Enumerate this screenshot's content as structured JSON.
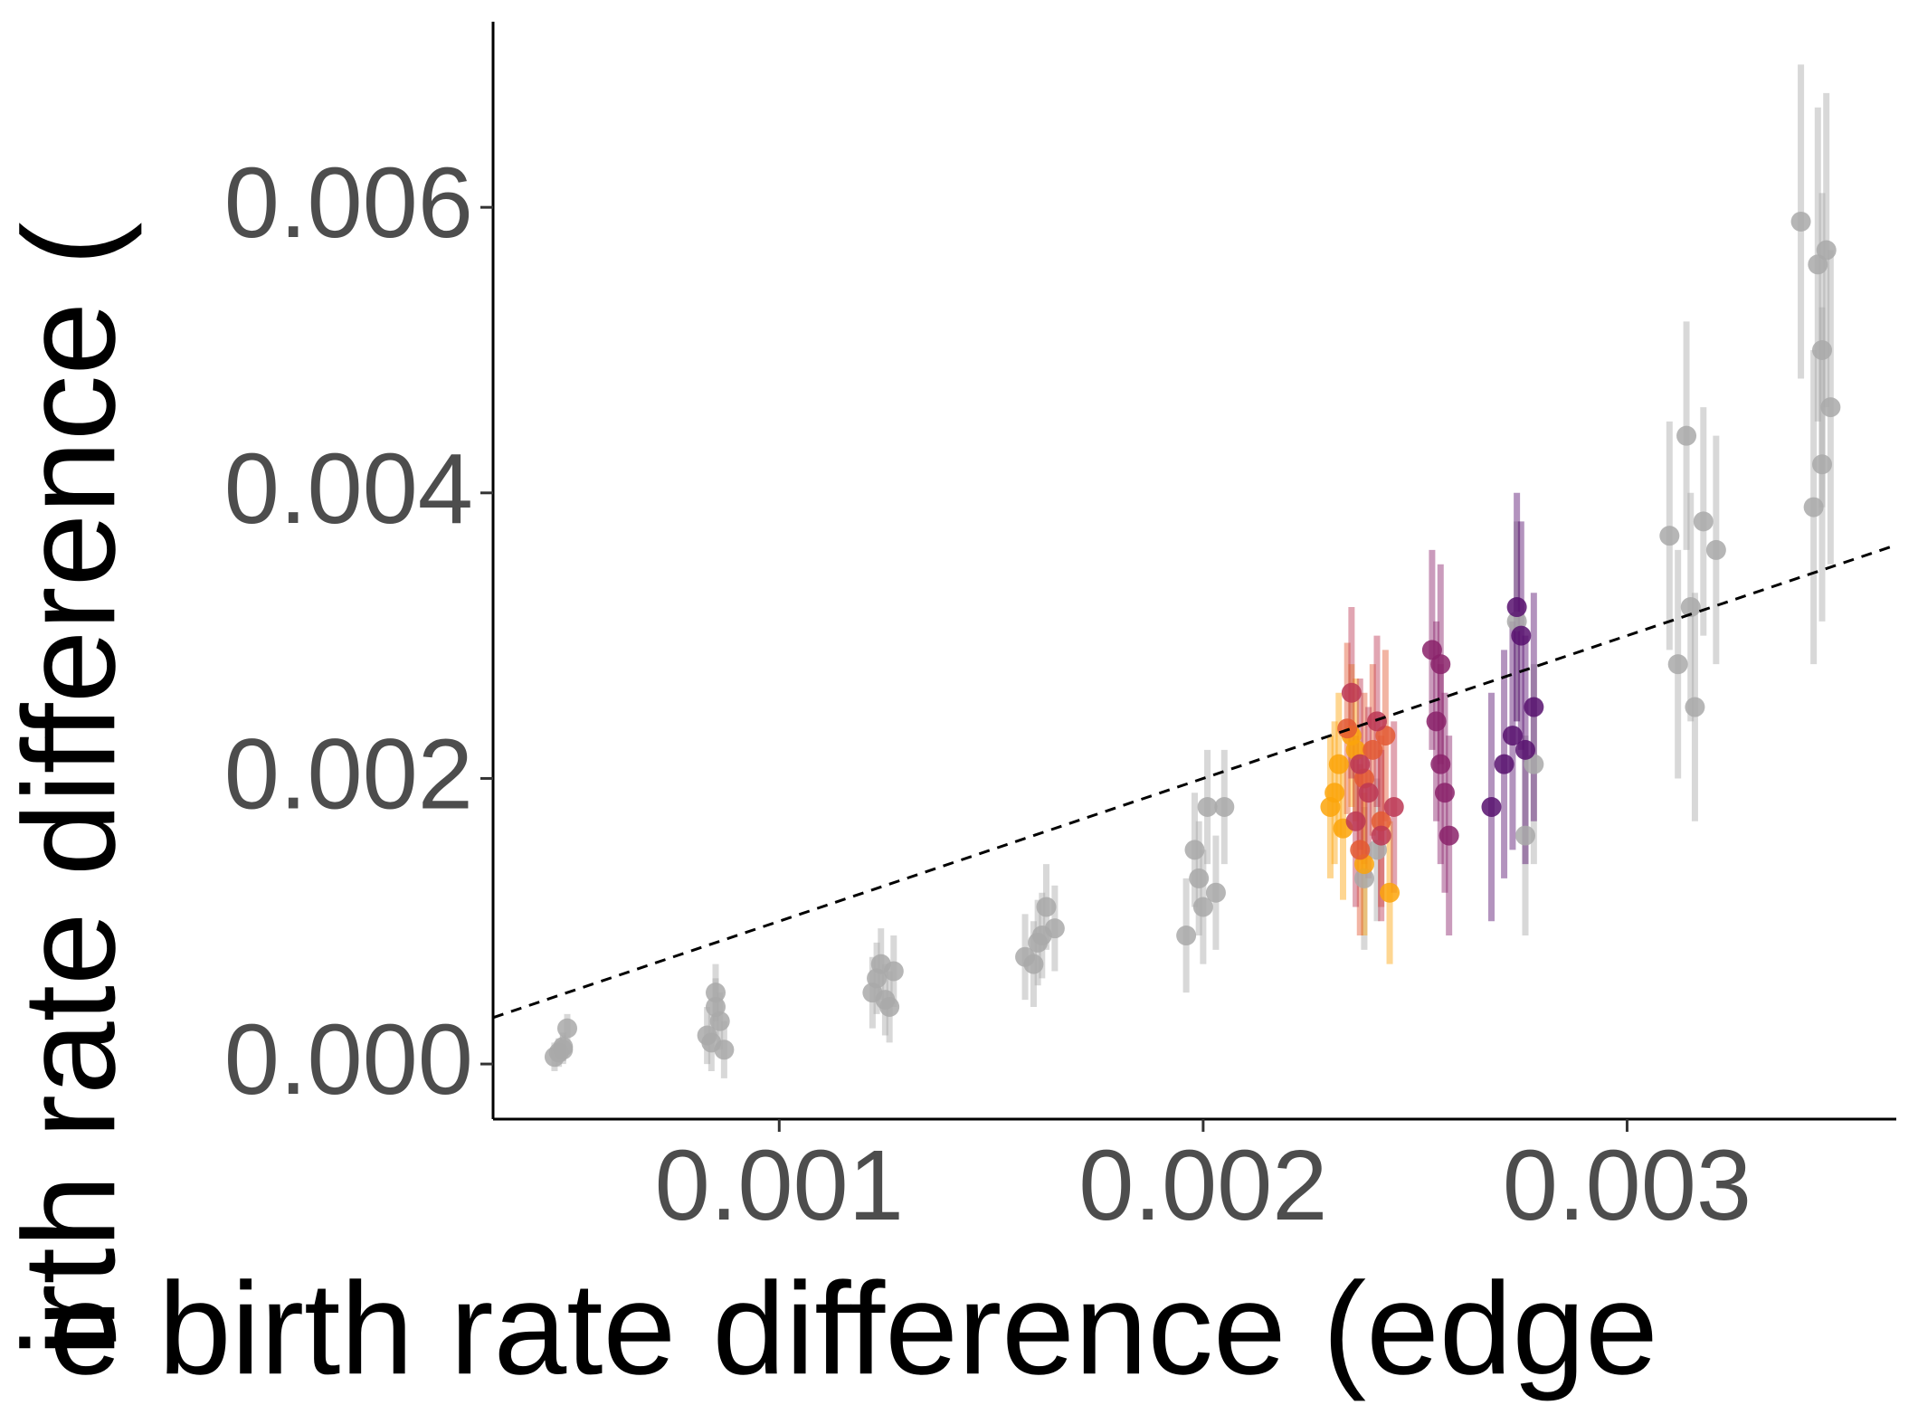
{
  "chart_data": {
    "type": "scatter",
    "x_label": "e birth rate difference (edge",
    "y_label": "irth rate difference (",
    "xlim": [
      0.000325,
      0.003635
    ],
    "ylim": [
      -0.000386,
      0.0073
    ],
    "xticks": [
      0.001,
      0.002,
      0.003
    ],
    "yticks": [
      {
        "value": 0,
        "label": "0.000"
      },
      0.002,
      0.004,
      0.006
    ],
    "identity_line": true,
    "series": [
      {
        "color": "#a9a9a9",
        "x": [
          0.00048,
          0.00049,
          0.00047,
          0.0005,
          0.00049,
          0.00084,
          0.00085,
          0.00086,
          0.00083,
          0.00087,
          0.00085,
          0.00122,
          0.00125,
          0.00124,
          0.00126,
          0.00123,
          0.00127,
          0.00158,
          0.00161,
          0.00163,
          0.0016,
          0.00165,
          0.00162,
          0.00196,
          0.00199,
          0.00201,
          0.00198,
          0.00203,
          0.002,
          0.00205,
          0.00238,
          0.00241,
          0.00274,
          0.00278,
          0.00276,
          0.0031,
          0.00312,
          0.00314,
          0.00316,
          0.00318,
          0.00321,
          0.00315,
          0.00341,
          0.00344,
          0.00345,
          0.00346,
          0.00347,
          0.00348,
          0.00346
        ],
        "values": [
          8e-05,
          0.00012,
          5e-05,
          0.00025,
          0.0001,
          0.00015,
          0.0005,
          0.0003,
          0.0002,
          0.0001,
          0.0004,
          0.0005,
          0.00045,
          0.0007,
          0.0004,
          0.0006,
          0.00065,
          0.00075,
          0.00085,
          0.0011,
          0.0007,
          0.00095,
          0.0009,
          0.0009,
          0.0013,
          0.0018,
          0.0015,
          0.0012,
          0.0011,
          0.0018,
          0.0013,
          0.0015,
          0.0031,
          0.0021,
          0.0016,
          0.0037,
          0.0028,
          0.0044,
          0.0025,
          0.0038,
          0.0036,
          0.0032,
          0.0059,
          0.0039,
          0.0056,
          0.005,
          0.0057,
          0.0046,
          0.0042
        ],
        "errors": [
          0.0001,
          0.0001,
          0.0001,
          0.0001,
          0.0001,
          0.0002,
          0.0002,
          0.0002,
          0.0002,
          0.0002,
          0.0002,
          0.00025,
          0.00025,
          0.00025,
          0.00025,
          0.00025,
          0.00025,
          0.0003,
          0.0003,
          0.0003,
          0.0003,
          0.0003,
          0.0003,
          0.0004,
          0.0004,
          0.0004,
          0.0004,
          0.0004,
          0.0004,
          0.0004,
          0.0005,
          0.0005,
          0.0007,
          0.0007,
          0.0007,
          0.0008,
          0.0008,
          0.0008,
          0.0008,
          0.0008,
          0.0008,
          0.0008,
          0.0011,
          0.0011,
          0.0011,
          0.0011,
          0.0011,
          0.0011,
          0.0011
        ]
      },
      {
        "color": "#fca50a",
        "x": [
          0.0023,
          0.00231,
          0.00233,
          0.00235,
          0.00232,
          0.00236,
          0.00238,
          0.00244
        ],
        "values": [
          0.0018,
          0.0019,
          0.00165,
          0.0023,
          0.0021,
          0.0022,
          0.0014,
          0.0012
        ],
        "errors": [
          0.0005,
          0.0005,
          0.0005,
          0.0005,
          0.0005,
          0.0005,
          0.0005,
          0.0005
        ]
      },
      {
        "color": "#e35932",
        "x": [
          0.00234,
          0.00237,
          0.0024,
          0.00242,
          0.00238,
          0.00243
        ],
        "values": [
          0.00235,
          0.0015,
          0.0022,
          0.0017,
          0.002,
          0.0023
        ],
        "errors": [
          0.0006,
          0.0006,
          0.0006,
          0.0006,
          0.0006,
          0.0006
        ]
      },
      {
        "color": "#bc3754",
        "x": [
          0.00235,
          0.00236,
          0.00239,
          0.00241,
          0.00242,
          0.00245,
          0.00237
        ],
        "values": [
          0.0026,
          0.0017,
          0.0019,
          0.0024,
          0.0016,
          0.0018,
          0.0021
        ],
        "errors": [
          0.0006,
          0.0006,
          0.0006,
          0.0006,
          0.0006,
          0.0006,
          0.0006
        ]
      },
      {
        "color": "#8a226a",
        "x": [
          0.00254,
          0.00255,
          0.00256,
          0.00257,
          0.00258,
          0.00256
        ],
        "values": [
          0.0029,
          0.0024,
          0.0021,
          0.0019,
          0.0016,
          0.0028
        ],
        "errors": [
          0.0007,
          0.0007,
          0.0007,
          0.0007,
          0.0007,
          0.0007
        ]
      },
      {
        "color": "#57106e",
        "x": [
          0.00268,
          0.00271,
          0.00273,
          0.00274,
          0.00276,
          0.00278,
          0.00275
        ],
        "values": [
          0.0018,
          0.0021,
          0.0023,
          0.0032,
          0.0022,
          0.0025,
          0.003
        ],
        "errors": [
          0.0008,
          0.0008,
          0.0008,
          0.0008,
          0.0008,
          0.0008,
          0.0008
        ]
      }
    ]
  }
}
